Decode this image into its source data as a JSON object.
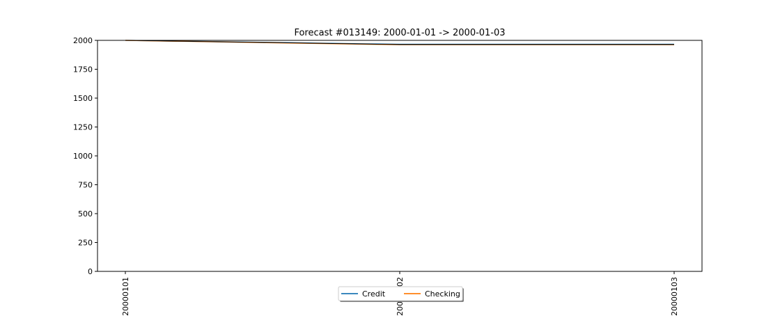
{
  "chart_data": {
    "type": "line",
    "title": "Forecast #013149: 2000-01-01 -> 2000-01-03",
    "xlabel": "",
    "ylabel": "",
    "categories": [
      "20000101",
      "20000102",
      "20000103"
    ],
    "ylim": [
      0,
      2000
    ],
    "yticks": [
      0,
      250,
      500,
      750,
      1000,
      1250,
      1500,
      1750,
      2000
    ],
    "grid": false,
    "legend_position": "bottom-center",
    "series": [
      {
        "name": "Credit",
        "color": "#1f77b4",
        "values": [
          2000,
          1966,
          1966
        ]
      },
      {
        "name": "Checking",
        "color": "#ff7f0e",
        "values": [
          2000,
          1962,
          1962
        ]
      }
    ],
    "overlay_line": {
      "color": "#000000",
      "values": [
        2000,
        1964,
        1964
      ]
    }
  }
}
